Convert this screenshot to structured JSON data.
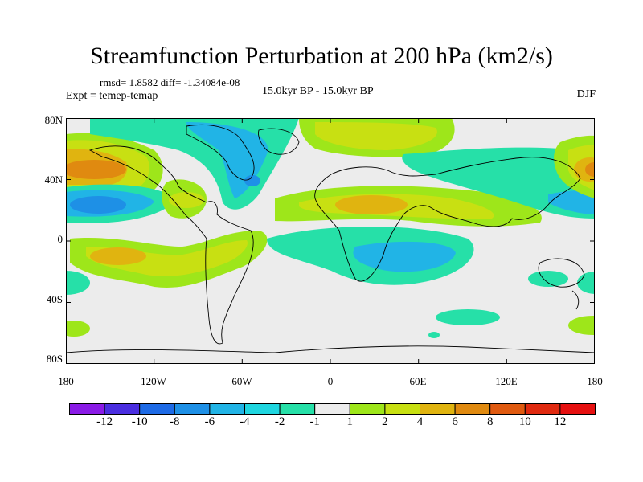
{
  "title": "Streamfunction Perturbation at 200 hPa (km2/s)",
  "stats": "rmsd= 1.8582 diff= -1.34084e-08",
  "experiment": "Expt = temep-temap",
  "period": "15.0kyr BP - 15.0kyr BP",
  "season": "DJF",
  "lat_labels": [
    "80N",
    "40N",
    "0",
    "40S",
    "80S"
  ],
  "lon_labels": [
    "180",
    "120W",
    "60W",
    "0",
    "60E",
    "120E",
    "180"
  ],
  "colorbar": {
    "labels": [
      "-12",
      "-10",
      "-8",
      "-6",
      "-4",
      "-2",
      "-1",
      "1",
      "2",
      "4",
      "6",
      "8",
      "10",
      "12"
    ],
    "colors": [
      "#8a1be6",
      "#4a2ee0",
      "#1d6ae6",
      "#1e90e6",
      "#21b4e6",
      "#1fd6e0",
      "#26e0a8",
      "#ececec",
      "#9ee61a",
      "#c8e012",
      "#e0b410",
      "#e08a10",
      "#e05a10",
      "#e02a10",
      "#e61010"
    ]
  },
  "chart_data": {
    "type": "heatmap",
    "title": "Streamfunction Perturbation at 200 hPa (km2/s)",
    "subtitle": "15.0kyr BP - 15.0kyr BP",
    "season": "DJF",
    "experiment": "Expt = temep-temap",
    "stats": {
      "rmsd": 1.8582,
      "diff": -1.34084e-08
    },
    "xlim": [
      -180,
      180
    ],
    "ylim": [
      -90,
      90
    ],
    "contour_levels": [
      -12,
      -10,
      -8,
      -6,
      -4,
      -2,
      -1,
      1,
      2,
      4,
      6,
      8,
      10,
      12
    ],
    "features": [
      {
        "lon": -160,
        "lat": 45,
        "value": 6.5
      },
      {
        "lon": -160,
        "lat": 22,
        "value": -7
      },
      {
        "lon": -140,
        "lat": -10,
        "value": 5
      },
      {
        "lon": -85,
        "lat": 25,
        "value": 2.5
      },
      {
        "lon": -55,
        "lat": 50,
        "value": -3.5
      },
      {
        "lon": 10,
        "lat": 75,
        "value": 3
      },
      {
        "lon": 30,
        "lat": 20,
        "value": 4
      },
      {
        "lon": 60,
        "lat": -20,
        "value": -3.5
      },
      {
        "lon": 160,
        "lat": 45,
        "value": 6
      },
      {
        "lon": 165,
        "lat": 20,
        "value": -3
      }
    ]
  }
}
